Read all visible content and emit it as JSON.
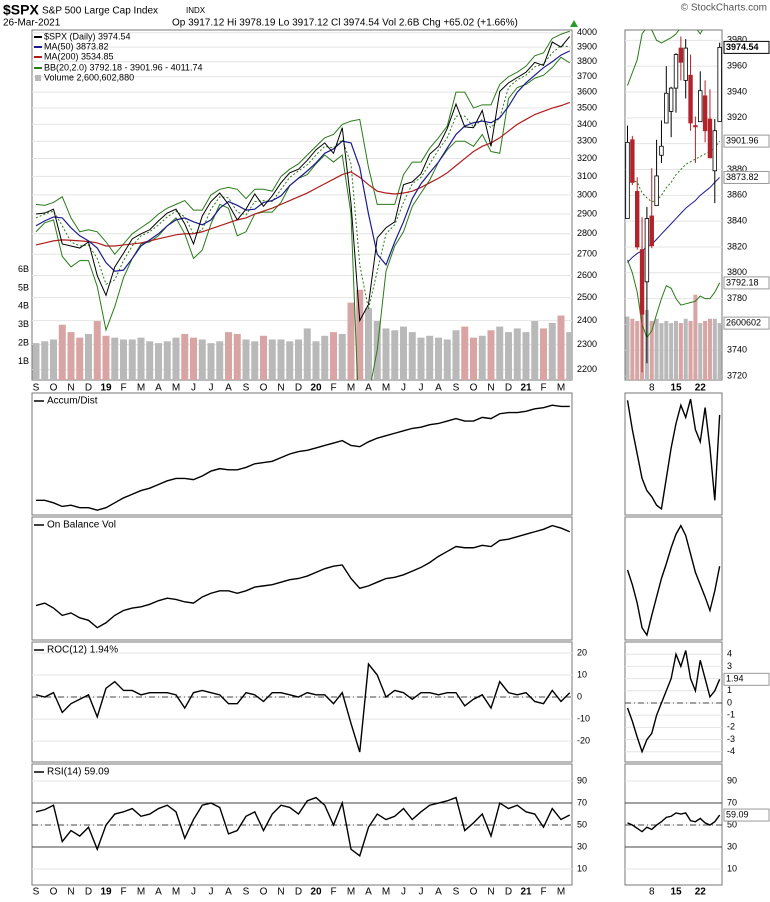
{
  "header": {
    "symbol": "$SPX",
    "name": "S&P 500 Large Cap Index",
    "exchange": "INDX",
    "date": "26-Mar-2021",
    "quote": "Op 3917.12 Hi 3978.19 Lo 3917.12 Cl 3974.54 Vol 2.6B Chg +65.02 (+1.66%)",
    "copyright": "© StockCharts.com"
  },
  "chart_data": [
    {
      "type": "line",
      "log_scale": true,
      "grid": true,
      "categories": [
        "S",
        null,
        "O",
        null,
        "N",
        null,
        "D",
        null,
        "19",
        null,
        "F",
        null,
        "M",
        null,
        "A",
        null,
        "M",
        null,
        "J",
        null,
        "J",
        null,
        "A",
        null,
        "S",
        null,
        "O",
        null,
        "N",
        null,
        "D",
        null,
        "20",
        null,
        "F",
        null,
        "M",
        null,
        "A",
        null,
        "M",
        null,
        "J",
        null,
        "J",
        null,
        "A",
        null,
        "S",
        null,
        "O",
        null,
        "N",
        null,
        "D",
        null,
        "21",
        null,
        "F",
        null,
        "M",
        null
      ],
      "ylim": [
        2160,
        4020
      ],
      "yticks": [
        2200,
        2300,
        2400,
        2500,
        2600,
        2700,
        2800,
        2900,
        3000,
        3100,
        3200,
        3300,
        3400,
        3500,
        3600,
        3700,
        3800,
        3900,
        4000
      ],
      "series": [
        {
          "name": "$SPX (Daily) 3974.54",
          "color": "#000000",
          "values": [
            2900,
            2905,
            2925,
            2750,
            2740,
            2730,
            2760,
            2600,
            2510,
            2640,
            2705,
            2775,
            2800,
            2820,
            2865,
            2905,
            2925,
            2850,
            2750,
            2890,
            2965,
            3010,
            2950,
            2870,
            2925,
            3005,
            2940,
            2995,
            3065,
            3120,
            3140,
            3190,
            3250,
            3290,
            3230,
            3380,
            2955,
            2400,
            2470,
            2780,
            2830,
            2860,
            3055,
            3070,
            3115,
            3225,
            3270,
            3375,
            3525,
            3385,
            3380,
            3485,
            3270,
            3605,
            3660,
            3695,
            3730,
            3795,
            3775,
            3935,
            3900,
            3974.54
          ]
        },
        {
          "name": "MA(50) 3873.82",
          "color": "#1c1c8c",
          "values": [
            2840,
            2865,
            2885,
            2880,
            2830,
            2790,
            2765,
            2730,
            2660,
            2620,
            2625,
            2680,
            2740,
            2770,
            2800,
            2840,
            2870,
            2880,
            2860,
            2845,
            2870,
            2930,
            2965,
            2945,
            2920,
            2925,
            2960,
            2970,
            2995,
            3050,
            3090,
            3130,
            3175,
            3230,
            3255,
            3300,
            3290,
            3150,
            2900,
            2700,
            2650,
            2760,
            2860,
            2980,
            3060,
            3120,
            3180,
            3260,
            3340,
            3390,
            3410,
            3420,
            3410,
            3440,
            3510,
            3600,
            3660,
            3710,
            3760,
            3800,
            3845,
            3873.82
          ]
        },
        {
          "name": "MA(200) 3534.85",
          "color": "#b01c1c",
          "values": [
            2745,
            2755,
            2765,
            2770,
            2768,
            2765,
            2762,
            2755,
            2740,
            2740,
            2745,
            2750,
            2755,
            2765,
            2775,
            2785,
            2795,
            2800,
            2800,
            2810,
            2825,
            2840,
            2855,
            2870,
            2880,
            2900,
            2915,
            2930,
            2950,
            2970,
            2990,
            3010,
            3035,
            3060,
            3085,
            3110,
            3125,
            3095,
            3055,
            3020,
            3010,
            3005,
            3010,
            3020,
            3040,
            3065,
            3090,
            3120,
            3160,
            3200,
            3240,
            3270,
            3290,
            3320,
            3360,
            3400,
            3430,
            3460,
            3480,
            3500,
            3515,
            3534.85
          ]
        }
      ],
      "bands": {
        "name": "BB(20,2.0) 3792.18 - 3901.96 - 4011.74",
        "color": "#2a7a1a",
        "upper": [
          2950,
          2945,
          2960,
          2990,
          2880,
          2810,
          2820,
          2810,
          2760,
          2700,
          2750,
          2800,
          2830,
          2860,
          2900,
          2930,
          2950,
          2970,
          2920,
          2920,
          3000,
          3030,
          3040,
          3030,
          2980,
          3030,
          3030,
          3020,
          3100,
          3140,
          3170,
          3220,
          3270,
          3320,
          3340,
          3400,
          3420,
          3430,
          3150,
          2950,
          2950,
          2950,
          3110,
          3180,
          3180,
          3260,
          3320,
          3390,
          3600,
          3600,
          3500,
          3520,
          3520,
          3650,
          3700,
          3730,
          3770,
          3840,
          3860,
          3960,
          3990,
          4011.74
        ],
        "middle": [
          2880,
          2900,
          2915,
          2840,
          2760,
          2740,
          2745,
          2680,
          2560,
          2580,
          2670,
          2740,
          2790,
          2810,
          2845,
          2885,
          2915,
          2885,
          2800,
          2820,
          2925,
          2990,
          2985,
          2910,
          2895,
          2965,
          2970,
          2965,
          3030,
          3095,
          3130,
          3165,
          3220,
          3270,
          3260,
          3310,
          3170,
          2650,
          2450,
          2620,
          2800,
          2845,
          2960,
          3060,
          3095,
          3170,
          3250,
          3320,
          3450,
          3450,
          3385,
          3430,
          3380,
          3440,
          3630,
          3680,
          3710,
          3765,
          3785,
          3860,
          3910,
          3901.96
        ],
        "lower": [
          2810,
          2855,
          2870,
          2690,
          2640,
          2670,
          2670,
          2550,
          2360,
          2460,
          2590,
          2680,
          2750,
          2760,
          2790,
          2840,
          2880,
          2800,
          2680,
          2720,
          2850,
          2950,
          2930,
          2790,
          2810,
          2900,
          2910,
          2910,
          2960,
          3050,
          3090,
          3110,
          3170,
          3220,
          3180,
          3220,
          2900,
          1950,
          2100,
          2280,
          2620,
          2740,
          2810,
          2940,
          3010,
          3080,
          3180,
          3250,
          3300,
          3300,
          3270,
          3340,
          3240,
          3230,
          3560,
          3630,
          3650,
          3690,
          3710,
          3760,
          3830,
          3792.18
        ]
      },
      "volume": {
        "name": "Volume 2,600,602,880",
        "up_color": "#b9b9b9",
        "down_color": "#d8a4a4",
        "ylim": [
          0,
          19
        ],
        "yticks": [
          {
            "value": 1,
            "label": "1B"
          },
          {
            "value": 2,
            "label": "2B"
          },
          {
            "value": 3,
            "label": "3B"
          },
          {
            "value": 4,
            "label": "4B"
          },
          {
            "value": 5,
            "label": "5B"
          },
          {
            "value": 6,
            "label": "6B"
          }
        ],
        "values": [
          2.0,
          2.1,
          2.2,
          3.0,
          2.6,
          2.3,
          2.5,
          3.2,
          2.4,
          2.3,
          2.2,
          2.2,
          2.3,
          2.1,
          2.0,
          2.1,
          2.3,
          2.5,
          2.3,
          2.2,
          2.0,
          2.1,
          2.6,
          2.5,
          2.2,
          2.1,
          2.4,
          2.2,
          2.2,
          2.1,
          2.2,
          2.8,
          2.1,
          2.4,
          2.6,
          2.5,
          4.2,
          4.9,
          3.9,
          3.2,
          2.8,
          2.7,
          2.9,
          2.6,
          2.3,
          2.4,
          2.3,
          2.2,
          2.7,
          2.9,
          2.3,
          2.4,
          2.7,
          2.9,
          2.6,
          2.8,
          2.6,
          3.2,
          2.8,
          3.1,
          3.5,
          2.6
        ]
      }
    },
    {
      "type": "candlestick",
      "grid": true,
      "categories": [
        null,
        null,
        null,
        null,
        null,
        "8",
        null,
        null,
        null,
        null,
        "15",
        null,
        null,
        null,
        null,
        "22",
        null,
        null,
        null,
        null
      ],
      "ylim": [
        3717,
        3988
      ],
      "yticks": [
        3720,
        3740,
        3760,
        3780,
        3800,
        3820,
        3840,
        3860,
        3880,
        3900,
        3920,
        3940,
        3960,
        3980
      ],
      "up_color": "#000000",
      "down_color": "#b3232b",
      "open": [
        3842,
        3903,
        3863,
        3818,
        3793,
        3844,
        3852,
        3891,
        3916,
        3925,
        3943,
        3974,
        3949,
        3953,
        3914,
        3917,
        3937,
        3919,
        3879,
        3917.12
      ],
      "high": [
        3914,
        3906,
        3874,
        3843,
        3851,
        3881,
        3903,
        3918,
        3960,
        3944,
        3970,
        3983,
        3981,
        3969,
        3921,
        3956,
        3949,
        3942,
        3919,
        3978.19
      ],
      "low": [
        3842,
        3868,
        3818,
        3723,
        3730,
        3819,
        3852,
        3885,
        3916,
        3905,
        3924,
        3949,
        3935,
        3910,
        3885,
        3917,
        3901,
        3889,
        3854,
        3917.12
      ],
      "close": [
        3901,
        3870,
        3820,
        3768,
        3842,
        3821,
        3875,
        3898,
        3939,
        3943,
        3969,
        3963,
        3974,
        3916,
        3913,
        3941,
        3910,
        3889,
        3910,
        3974.54
      ],
      "ma50": {
        "color": "#1c1c8c",
        "values": [
          3808,
          3812,
          3815,
          3817,
          3820,
          3822,
          3826,
          3830,
          3834,
          3838,
          3842,
          3846,
          3850,
          3853,
          3856,
          3860,
          3863,
          3866,
          3870,
          3873.82
        ]
      },
      "bands": {
        "color": "#2a7a1a",
        "upper": [
          3945,
          3955,
          3965,
          3985,
          3990,
          3988,
          3980,
          3978,
          3980,
          3982,
          3985,
          3990,
          3992,
          3995,
          3990,
          3985,
          3992,
          4000,
          4005,
          4011.74
        ],
        "middle": [
          3870,
          3872,
          3870,
          3862,
          3858,
          3855,
          3856,
          3860,
          3866,
          3870,
          3876,
          3880,
          3884,
          3886,
          3888,
          3890,
          3892,
          3894,
          3897,
          3901.96
        ],
        "lower": [
          3810,
          3800,
          3785,
          3760,
          3750,
          3755,
          3768,
          3780,
          3790,
          3788,
          3780,
          3775,
          3776,
          3777,
          3778,
          3782,
          3780,
          3780,
          3785,
          3792.18
        ]
      },
      "volume": {
        "up_color": "#b9b9b9",
        "down_color": "#d8a4a4",
        "ylim": [
          0,
          16
        ],
        "tag": "2600602",
        "values": [
          2.9,
          2.8,
          2.7,
          3.1,
          3.2,
          2.7,
          2.8,
          2.6,
          2.7,
          2.6,
          2.7,
          2.6,
          2.8,
          2.7,
          3.9,
          2.6,
          2.7,
          2.8,
          2.8,
          2.600602
        ]
      }
    },
    {
      "type": "line",
      "title": "Accum/Dist",
      "color": "#000000",
      "ylim": [
        0,
        100
      ],
      "values": [
        12,
        12,
        10,
        7,
        8,
        6,
        6,
        4,
        6,
        10,
        14,
        17,
        20,
        22,
        25,
        28,
        30,
        30,
        29,
        32,
        36,
        38,
        37,
        37,
        39,
        42,
        43,
        44,
        47,
        50,
        52,
        53,
        55,
        57,
        59,
        61,
        57,
        56,
        60,
        63,
        65,
        67,
        69,
        71,
        72,
        74,
        75,
        77,
        79,
        77,
        77,
        80,
        79,
        83,
        84,
        84,
        85,
        87,
        88,
        90,
        89,
        89
      ]
    },
    {
      "type": "line",
      "color": "#000000",
      "ylim": [
        0,
        100
      ],
      "values": [
        94,
        70,
        50,
        30,
        20,
        15,
        8,
        5,
        30,
        55,
        75,
        90,
        80,
        95,
        70,
        60,
        88,
        55,
        12,
        82
      ]
    },
    {
      "type": "line",
      "title": "On Balance Vol",
      "color": "#000000",
      "ylim": [
        0,
        100
      ],
      "values": [
        28,
        30,
        26,
        20,
        22,
        18,
        16,
        10,
        14,
        20,
        24,
        26,
        27,
        29,
        32,
        34,
        33,
        31,
        30,
        35,
        38,
        40,
        40,
        38,
        40,
        43,
        44,
        45,
        47,
        49,
        50,
        52,
        55,
        58,
        60,
        61,
        50,
        42,
        44,
        47,
        50,
        51,
        53,
        56,
        59,
        63,
        68,
        72,
        76,
        75,
        75,
        77,
        76,
        81,
        82,
        84,
        86,
        88,
        90,
        93,
        91,
        88
      ]
    },
    {
      "type": "line",
      "color": "#000000",
      "ylim": [
        0,
        100
      ],
      "values": [
        57,
        45,
        30,
        10,
        4,
        20,
        35,
        50,
        62,
        75,
        86,
        93,
        85,
        70,
        55,
        45,
        35,
        24,
        40,
        60
      ]
    },
    {
      "type": "line",
      "title": "ROC(12) 1.94%",
      "color": "#000000",
      "grid": true,
      "ylim": [
        -29.5,
        25
      ],
      "yticks": [
        20,
        10,
        0,
        -10,
        -20
      ],
      "center_line": 0,
      "values": [
        1,
        0,
        2,
        -7,
        -3,
        -1,
        1,
        -9,
        4,
        7,
        3,
        3,
        1,
        2,
        2,
        2,
        1,
        -5,
        2,
        3,
        2,
        1,
        -3,
        -3,
        2,
        1,
        -2,
        2,
        2,
        1,
        0,
        2,
        1,
        1,
        -3,
        2,
        -12,
        -25,
        15,
        10,
        0,
        3,
        2,
        -1,
        2,
        2,
        1,
        2,
        2,
        -4,
        -1,
        1,
        -5,
        7,
        2,
        1,
        2,
        -2,
        -3,
        3,
        -2,
        1.94
      ]
    },
    {
      "type": "line",
      "color": "#000000",
      "grid": true,
      "ylim": [
        -4.84,
        5
      ],
      "yticks": [
        4,
        3,
        2,
        1,
        0,
        -1,
        -2,
        -3,
        -4
      ],
      "center_line": 0,
      "values": [
        -0.4,
        -1.5,
        -2.8,
        -4,
        -3,
        -2.5,
        -1,
        0,
        1,
        2,
        4,
        3,
        4.3,
        2,
        1,
        3.5,
        2,
        0.5,
        1,
        1.94
      ]
    },
    {
      "type": "line",
      "title": "RSI(14) 59.09",
      "color": "#000000",
      "grid": true,
      "ylim": [
        -4.5,
        105.5
      ],
      "yticks": [
        90,
        70,
        50,
        30,
        10
      ],
      "reference_lines": [
        70,
        30
      ],
      "center_line": 50,
      "values": [
        62,
        64,
        68,
        35,
        45,
        40,
        48,
        28,
        50,
        60,
        62,
        65,
        58,
        60,
        65,
        68,
        62,
        38,
        55,
        68,
        70,
        66,
        42,
        45,
        58,
        62,
        45,
        60,
        68,
        66,
        60,
        72,
        75,
        68,
        50,
        70,
        28,
        22,
        48,
        60,
        55,
        58,
        65,
        55,
        62,
        68,
        70,
        72,
        75,
        45,
        52,
        60,
        40,
        70,
        65,
        68,
        62,
        60,
        48,
        65,
        55,
        59.09
      ]
    },
    {
      "type": "line",
      "color": "#000000",
      "grid": true,
      "ylim": [
        -4.5,
        105.5
      ],
      "yticks": [
        90,
        70,
        50,
        30,
        10
      ],
      "reference_lines": [
        70,
        30
      ],
      "center_line": 50,
      "values": [
        52,
        50,
        47,
        44,
        48,
        46,
        50,
        53,
        57,
        58,
        61,
        60,
        61,
        54,
        53,
        56,
        52,
        50,
        53,
        59.09
      ]
    }
  ]
}
